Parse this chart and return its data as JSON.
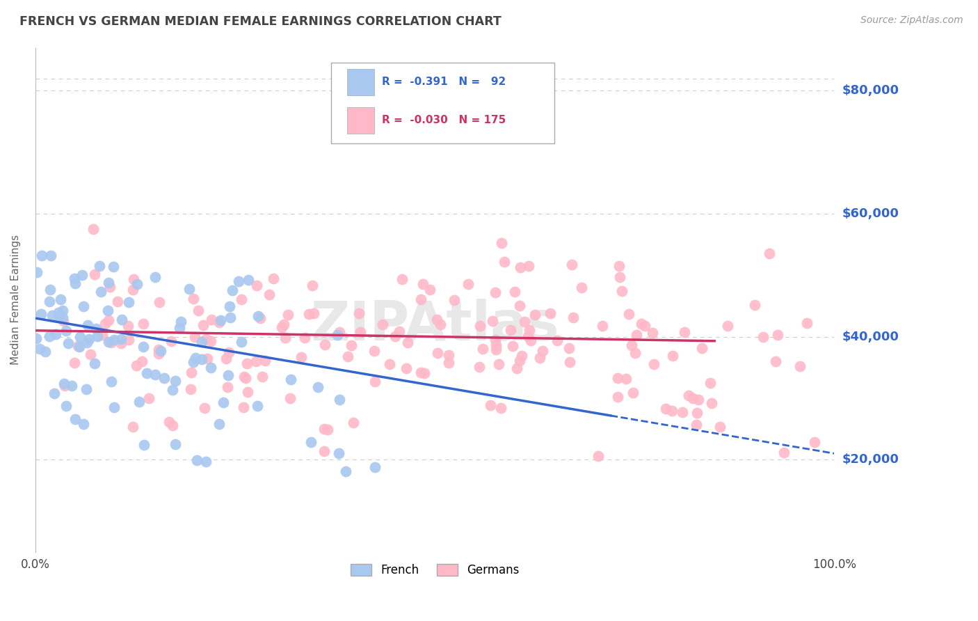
{
  "title": "FRENCH VS GERMAN MEDIAN FEMALE EARNINGS CORRELATION CHART",
  "source": "Source: ZipAtlas.com",
  "ylabel_label": "Median Female Earnings",
  "french_R": -0.391,
  "french_N": 92,
  "german_R": -0.03,
  "german_N": 175,
  "french_color": "#A8C8F0",
  "german_color": "#FFB8C8",
  "french_line_color": "#3366CC",
  "german_line_color": "#CC3366",
  "watermark": "ZIPAtlas",
  "background_color": "#FFFFFF",
  "grid_color": "#CCCCCC",
  "yaxis_label_color": "#3366CC",
  "title_color": "#444444",
  "ylabel_values": [
    20000,
    40000,
    60000,
    80000
  ],
  "ylabel_labels": [
    "$20,000",
    "$40,000",
    "$60,000",
    "$80,000"
  ],
  "ylim": [
    5000,
    87000
  ],
  "xlim": [
    0.0,
    1.0
  ],
  "french_intercept": 43000,
  "french_slope": -22000,
  "german_intercept": 41000,
  "german_slope": -2000
}
